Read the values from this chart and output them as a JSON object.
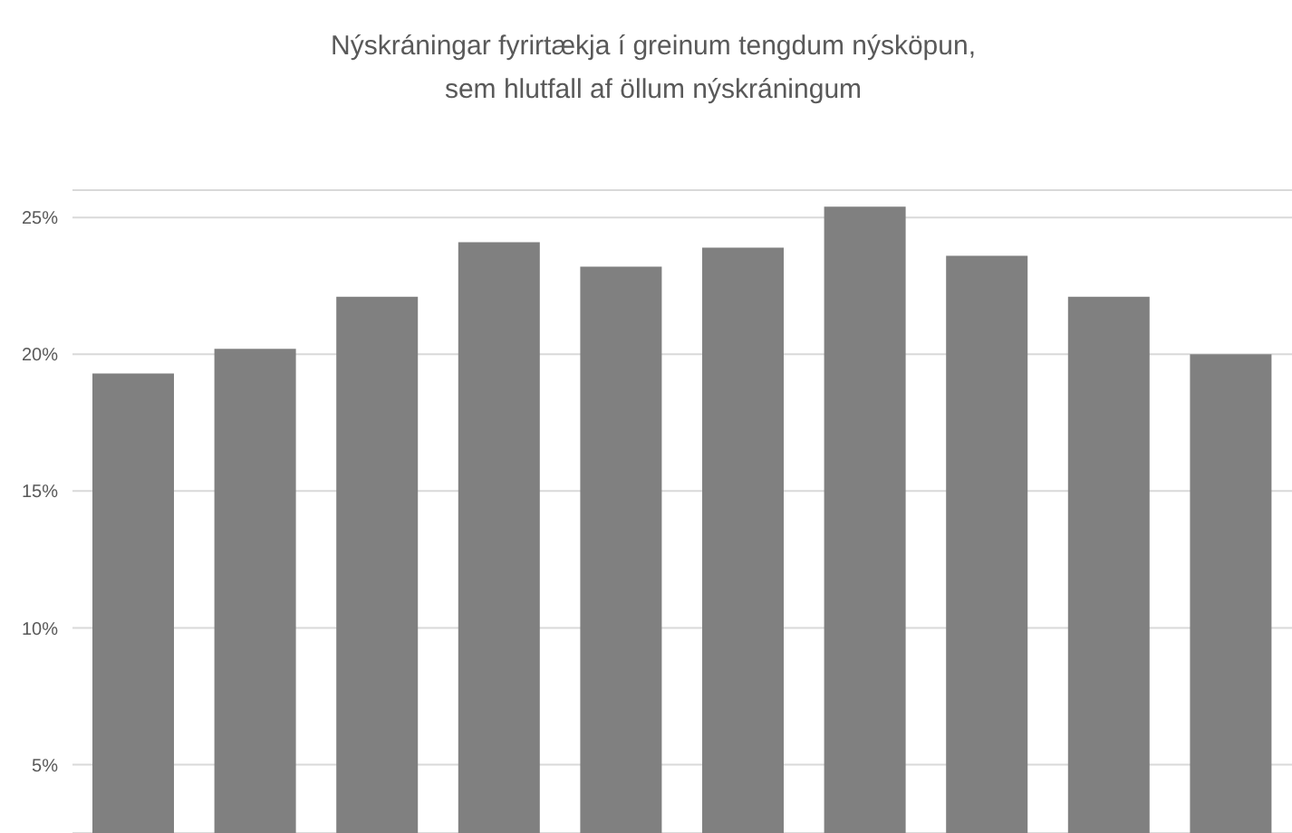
{
  "chart_data": {
    "type": "bar",
    "title": "Nýskráningar fyrirtækja í greinum tengdum nýsköpun,\nsem hlutfall af öllum nýskráningum",
    "categories": [
      null,
      null,
      null,
      null,
      null,
      null,
      null,
      null,
      null,
      null
    ],
    "values": [
      19.3,
      20.2,
      22.1,
      24.1,
      23.2,
      23.9,
      25.4,
      23.6,
      22.1,
      20.0
    ],
    "color": "#808080",
    "ylim": [
      2.5,
      26
    ],
    "yticks": [
      {
        "value": 5,
        "label": "5%"
      },
      {
        "value": 10,
        "label": "10%"
      },
      {
        "value": 15,
        "label": "15%"
      },
      {
        "value": 20,
        "label": "20%"
      },
      {
        "value": 25,
        "label": "25%"
      }
    ],
    "grid": "y",
    "tick_labels": "y"
  }
}
